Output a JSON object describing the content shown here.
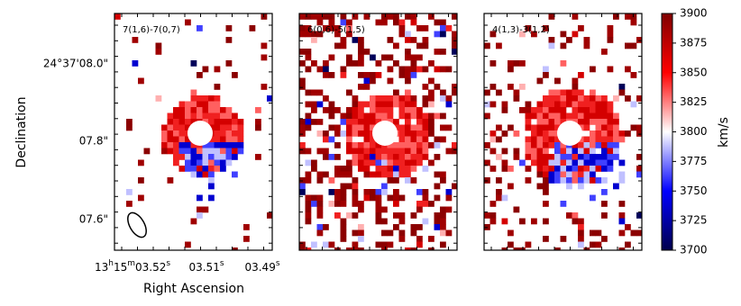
{
  "panels": [
    {
      "label": "7(1,6)-7(0,7)"
    },
    {
      "label": "6(0,6)-5(1,5)"
    },
    {
      "label": "4(1,3)-3(1,2)"
    }
  ],
  "x_axis": {
    "label": "Right Ascension",
    "ticks": [
      {
        "parts": [
          "13",
          "h",
          "15",
          "m",
          "03.52",
          "s"
        ]
      },
      {
        "parts": [
          "03.51",
          "s"
        ]
      },
      {
        "parts": [
          "03.49",
          "s"
        ]
      }
    ]
  },
  "y_axis": {
    "label": "Declination",
    "ticks": [
      "24°37'08.0\"",
      "07.8\"",
      "07.6\""
    ]
  },
  "colorbar": {
    "label": "km/s",
    "lim": [
      3700,
      3900
    ],
    "ticks": [
      3700,
      3725,
      3750,
      3775,
      3800,
      3825,
      3850,
      3875,
      3900
    ],
    "colors": [
      "#00004c",
      "#0000ff",
      "#ffffff",
      "#ff0000",
      "#800000"
    ]
  }
}
